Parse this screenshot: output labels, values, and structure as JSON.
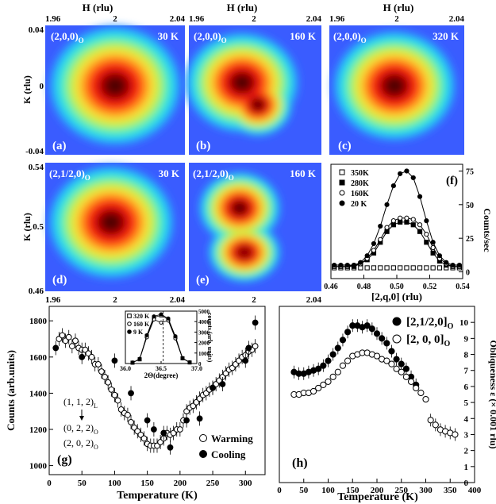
{
  "colors": {
    "map_background": "#3a5cff",
    "map_levels": [
      "#2e8bff",
      "#22d3f0",
      "#52f0b8",
      "#b4f050",
      "#f6e23a",
      "#ff9b1a",
      "#ff3c12",
      "#e00d0a",
      "#8a0000",
      "#4d0000"
    ],
    "open_marker": "#ffffff",
    "filled_marker": "#000000"
  },
  "maps": {
    "top_axis_title": "H (rlu)",
    "top_ticks": [
      "1.96",
      "2",
      "2.04"
    ],
    "bottom_ticks": [
      "1.96",
      "2",
      "2.04"
    ],
    "row1_ylabel": "K (rlu)",
    "row1_yticks": [
      "0.04",
      "0",
      "-0.04"
    ],
    "row2_ylabel": "K (rlu)",
    "row2_yticks": [
      "0.54",
      "0.5",
      "0.46"
    ],
    "panels": [
      {
        "reflection": "(2,0,0)",
        "subscript": "O",
        "temperature": "30 K",
        "tag": "(a)"
      },
      {
        "reflection": "(2,0,0)",
        "subscript": "O",
        "temperature": "160 K",
        "tag": "(b)"
      },
      {
        "reflection": "(2,0,0)",
        "subscript": "O",
        "temperature": "320 K",
        "tag": "(c)"
      },
      {
        "reflection": "(2,1/2,0)",
        "subscript": "O",
        "temperature": "30 K",
        "tag": "(d)"
      },
      {
        "reflection": "(2,1/2,0)",
        "subscript": "O",
        "temperature": "160 K",
        "tag": "(e)"
      }
    ]
  },
  "chart_data": [
    {
      "panel": "(f)",
      "type": "line",
      "xlabel": "[2,q,0] (rlu)",
      "ylabel": "Counts/sec",
      "xlim": [
        0.46,
        0.54
      ],
      "ylim": [
        -5,
        80
      ],
      "x_ticks": [
        "0.46",
        "0.48",
        "0.50",
        "0.52",
        "0.54"
      ],
      "y_ticks": [
        "0",
        "25",
        "50",
        "75"
      ],
      "series": [
        {
          "name": "350K",
          "marker": "open-square",
          "x": [
            0.462,
            0.466,
            0.47,
            0.474,
            0.478,
            0.482,
            0.486,
            0.49,
            0.494,
            0.498,
            0.502,
            0.506,
            0.51,
            0.514,
            0.518,
            0.522,
            0.526,
            0.53,
            0.534,
            0.538
          ],
          "y": [
            3,
            3,
            3,
            3,
            3,
            3,
            3,
            3,
            3,
            3,
            3,
            3,
            3,
            3,
            3,
            3,
            3,
            3,
            3,
            3
          ]
        },
        {
          "name": "280K",
          "marker": "filled-square",
          "x": [
            0.462,
            0.466,
            0.47,
            0.474,
            0.478,
            0.482,
            0.486,
            0.49,
            0.494,
            0.498,
            0.502,
            0.506,
            0.51,
            0.514,
            0.518,
            0.522,
            0.526,
            0.53,
            0.534,
            0.538
          ],
          "y": [
            4,
            4,
            4,
            4,
            6,
            9,
            14,
            22,
            30,
            35,
            37,
            37,
            35,
            30,
            22,
            14,
            8,
            5,
            4,
            4
          ]
        },
        {
          "name": "160K",
          "marker": "open-circle",
          "x": [
            0.462,
            0.466,
            0.47,
            0.474,
            0.478,
            0.482,
            0.486,
            0.49,
            0.494,
            0.498,
            0.502,
            0.506,
            0.51,
            0.514,
            0.518,
            0.522,
            0.526,
            0.53,
            0.534,
            0.538
          ],
          "y": [
            4,
            4,
            4,
            5,
            6,
            10,
            16,
            24,
            33,
            38,
            40,
            40,
            39,
            35,
            28,
            18,
            10,
            6,
            4,
            4
          ]
        },
        {
          "name": "20 K",
          "marker": "filled-circle",
          "x": [
            0.462,
            0.466,
            0.47,
            0.474,
            0.478,
            0.482,
            0.486,
            0.49,
            0.494,
            0.498,
            0.502,
            0.506,
            0.51,
            0.514,
            0.518,
            0.522,
            0.526,
            0.53,
            0.534,
            0.538
          ],
          "y": [
            5,
            5,
            5,
            5,
            7,
            12,
            21,
            34,
            50,
            64,
            73,
            75,
            70,
            56,
            38,
            22,
            12,
            7,
            5,
            5
          ]
        }
      ]
    },
    {
      "panel": "(g)",
      "type": "scatter",
      "xlabel": "Temperature (K)",
      "ylabel": "Counts (arb.units)",
      "xlim": [
        0,
        330
      ],
      "ylim": [
        950,
        1880
      ],
      "x_ticks": [
        "0",
        "50",
        "100",
        "150",
        "200",
        "250",
        "300"
      ],
      "y_ticks": [
        "1000",
        "1200",
        "1400",
        "1600",
        "1800"
      ],
      "annotation_lines": [
        "(1, 1, 2)",
        "L",
        "(0, 2, 2)",
        "O",
        "(2, 0, 2)",
        "O"
      ],
      "series": [
        {
          "name": "Warming",
          "marker": "open-circle",
          "x": [
            15,
            20,
            25,
            30,
            35,
            40,
            45,
            50,
            55,
            60,
            65,
            70,
            75,
            80,
            85,
            90,
            95,
            100,
            105,
            110,
            115,
            120,
            125,
            130,
            135,
            140,
            145,
            150,
            155,
            160,
            165,
            170,
            175,
            180,
            185,
            190,
            195,
            200,
            205,
            210,
            215,
            220,
            225,
            230,
            235,
            240,
            245,
            250,
            255,
            260,
            265,
            270,
            275,
            280,
            285,
            290,
            295,
            300,
            305,
            310,
            315
          ],
          "y": [
            1700,
            1720,
            1690,
            1710,
            1660,
            1690,
            1650,
            1640,
            1640,
            1620,
            1600,
            1560,
            1560,
            1520,
            1490,
            1460,
            1420,
            1390,
            1360,
            1310,
            1290,
            1280,
            1240,
            1210,
            1190,
            1170,
            1150,
            1120,
            1110,
            1110,
            1110,
            1130,
            1150,
            1180,
            1170,
            1180,
            1200,
            1200,
            1250,
            1300,
            1320,
            1330,
            1350,
            1370,
            1390,
            1400,
            1420,
            1430,
            1450,
            1470,
            1490,
            1510,
            1530,
            1540,
            1560,
            1580,
            1600,
            1610,
            1630,
            1640,
            1660
          ]
        },
        {
          "name": "Cooling",
          "marker": "filled-circle",
          "x": [
            10,
            50,
            100,
            125,
            150,
            160,
            175,
            185,
            210,
            230,
            250,
            265,
            300,
            305,
            315
          ],
          "y": [
            1650,
            1600,
            1580,
            1400,
            1250,
            1200,
            1180,
            1100,
            1250,
            1260,
            1430,
            1450,
            1580,
            1650,
            1790
          ]
        }
      ],
      "inset": {
        "xlabel": "2Θ(degree)",
        "ylabel": "counts (arb. units)",
        "xlim": [
          36.0,
          37.0
        ],
        "ylim": [
          0,
          5000
        ],
        "x_ticks": [
          "36.0",
          "36.5",
          "37.0"
        ],
        "y_ticks": [
          "0",
          "1000",
          "2000",
          "3000",
          "4000",
          "5000"
        ],
        "series": [
          {
            "name": "320 K",
            "marker": "open-square",
            "x": [
              36.1,
              36.2,
              36.3,
              36.4,
              36.5,
              36.6,
              36.7,
              36.8,
              36.9
            ],
            "y": [
              80,
              400,
              2600,
              4400,
              4600,
              4200,
              2500,
              500,
              100
            ]
          },
          {
            "name": "160 K",
            "marker": "open-circle",
            "x": [
              36.1,
              36.2,
              36.3,
              36.4,
              36.5,
              36.6,
              36.7,
              36.8,
              36.9
            ],
            "y": [
              80,
              420,
              2500,
              4200,
              3900,
              4100,
              2400,
              480,
              100
            ]
          },
          {
            "name": "9 K",
            "marker": "filled-circle",
            "x": [
              36.1,
              36.2,
              36.3,
              36.4,
              36.5,
              36.6,
              36.7,
              36.8,
              36.9
            ],
            "y": [
              90,
              450,
              2700,
              4500,
              4700,
              4300,
              2600,
              520,
              110
            ]
          }
        ]
      }
    },
    {
      "panel": "(h)",
      "type": "scatter",
      "xlabel": "Temperature (K)",
      "ylabel": "Obliqueness ε (× 0.001 rlu)",
      "xlim": [
        0,
        400
      ],
      "ylim": [
        0,
        11
      ],
      "x_ticks": [
        "0",
        "50",
        "100",
        "150",
        "200",
        "250",
        "300",
        "350",
        "400"
      ],
      "y_ticks": [
        "0",
        "1",
        "2",
        "3",
        "4",
        "5",
        "6",
        "7",
        "8",
        "9",
        "10"
      ],
      "series": [
        {
          "name": "[2,1/2,0]",
          "subscript": "O",
          "marker": "filled-circle",
          "x": [
            30,
            40,
            50,
            60,
            70,
            80,
            90,
            100,
            110,
            120,
            130,
            140,
            150,
            160,
            170,
            180,
            190,
            200,
            210,
            220,
            230,
            240,
            250,
            260,
            270,
            280
          ],
          "y": [
            6.9,
            6.8,
            6.8,
            6.9,
            7.0,
            7.1,
            7.3,
            7.6,
            8.0,
            8.4,
            8.9,
            9.4,
            9.8,
            9.8,
            9.7,
            9.8,
            9.6,
            9.3,
            9.0,
            8.7,
            8.2,
            7.7,
            7.4,
            7.1,
            6.6,
            6.1
          ]
        },
        {
          "name": "[2, 0, 0]",
          "subscript": "O",
          "marker": "open-circle",
          "x": [
            30,
            40,
            50,
            60,
            70,
            80,
            90,
            100,
            110,
            120,
            130,
            140,
            150,
            160,
            170,
            180,
            190,
            200,
            210,
            220,
            230,
            240,
            250,
            260,
            270,
            280,
            290,
            300,
            310,
            320,
            330,
            340,
            350,
            360
          ],
          "y": [
            5.5,
            5.5,
            5.6,
            5.6,
            5.7,
            5.9,
            6.1,
            6.3,
            6.6,
            6.9,
            7.3,
            7.6,
            7.9,
            8.0,
            8.1,
            8.1,
            8.0,
            7.9,
            7.7,
            7.6,
            7.4,
            7.1,
            6.9,
            6.6,
            6.3,
            5.9,
            5.6,
            5.2,
            3.9,
            3.6,
            3.3,
            3.2,
            3.1,
            3.0
          ]
        }
      ]
    }
  ]
}
